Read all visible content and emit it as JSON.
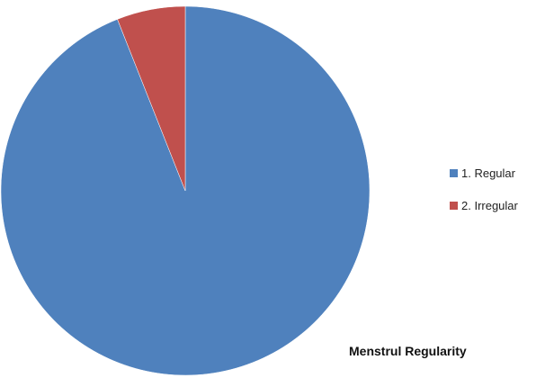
{
  "chart_data": {
    "type": "pie",
    "title": "Menstrul Regularity",
    "categories": [
      "1. Regular",
      "2. Irregular"
    ],
    "values": [
      94,
      6
    ],
    "colors": [
      "#4F81BD",
      "#C0504D"
    ],
    "legend_position": "right"
  }
}
